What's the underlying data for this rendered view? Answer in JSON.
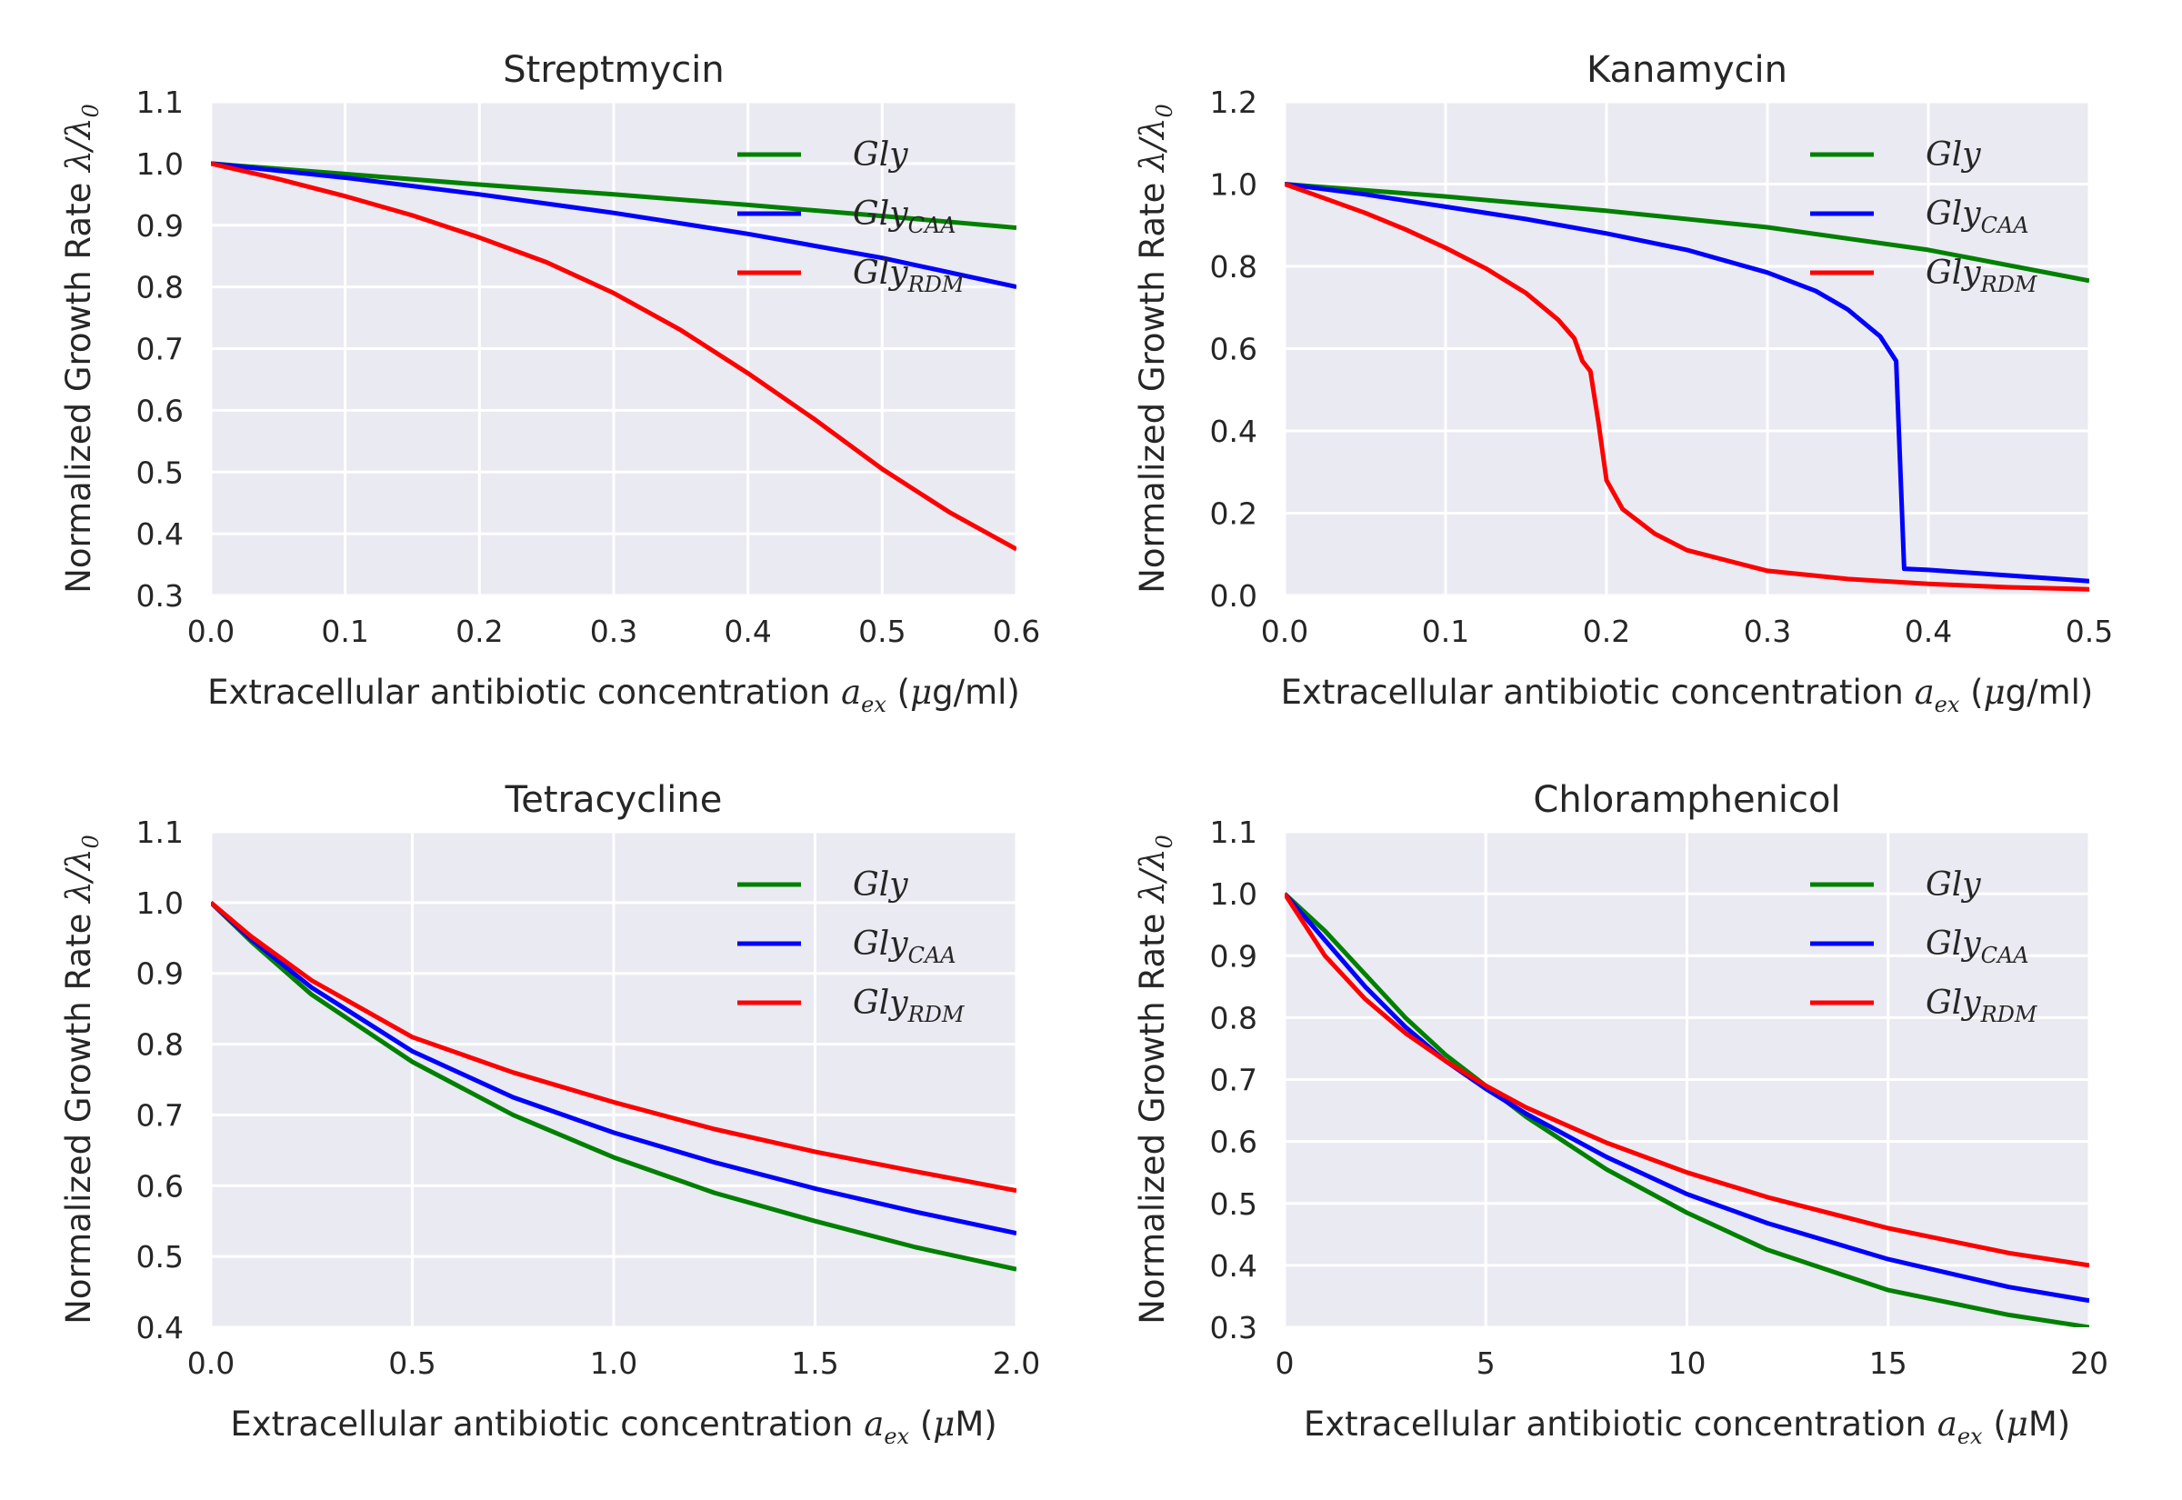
{
  "chart_data": [
    {
      "type": "line",
      "title": "Streptmycin",
      "xlabel": "Extracellular antibiotic concentration a_ex (μg/ml)",
      "xlabel_parts": {
        "text": "Extracellular antibiotic concentration ",
        "var": "a",
        "var_sub": "ex",
        "unit_pre": " (",
        "mu": "μ",
        "unit": "g/ml)"
      },
      "ylabel": "Normalized Growth Rate λ/λ0",
      "ylabel_parts": {
        "text": "Normalized Growth Rate ",
        "math": "λ/λ",
        "sub": "0"
      },
      "xlim": [
        0.0,
        0.6
      ],
      "ylim": [
        0.3,
        1.1
      ],
      "xticks": [
        0.0,
        0.1,
        0.2,
        0.3,
        0.4,
        0.5,
        0.6
      ],
      "xtick_labels": [
        "0.0",
        "0.1",
        "0.2",
        "0.3",
        "0.4",
        "0.5",
        "0.6"
      ],
      "yticks": [
        0.3,
        0.4,
        0.5,
        0.6,
        0.7,
        0.8,
        0.9,
        1.0,
        1.1
      ],
      "ytick_labels": [
        "0.3",
        "0.4",
        "0.5",
        "0.6",
        "0.7",
        "0.8",
        "0.9",
        "1.0",
        "1.1"
      ],
      "grid": true,
      "legend_position": "top-right",
      "series": [
        {
          "name": "Gly",
          "name_base": "Gly",
          "name_sub": "",
          "color": "#008000",
          "x": [
            0.0,
            0.1,
            0.2,
            0.3,
            0.4,
            0.5,
            0.6
          ],
          "y": [
            1.0,
            0.983,
            0.966,
            0.95,
            0.933,
            0.915,
            0.896
          ]
        },
        {
          "name": "Gly_CAA",
          "name_base": "Gly",
          "name_sub": "CAA",
          "color": "#0000ff",
          "x": [
            0.0,
            0.1,
            0.2,
            0.3,
            0.4,
            0.5,
            0.6
          ],
          "y": [
            1.0,
            0.977,
            0.95,
            0.92,
            0.886,
            0.847,
            0.8
          ]
        },
        {
          "name": "Gly_RDM",
          "name_base": "Gly",
          "name_sub": "RDM",
          "color": "#ff0000",
          "x": [
            0.0,
            0.05,
            0.1,
            0.15,
            0.2,
            0.25,
            0.3,
            0.35,
            0.4,
            0.45,
            0.5,
            0.55,
            0.6
          ],
          "y": [
            1.0,
            0.975,
            0.947,
            0.916,
            0.88,
            0.84,
            0.79,
            0.73,
            0.66,
            0.585,
            0.505,
            0.435,
            0.375
          ]
        }
      ]
    },
    {
      "type": "line",
      "title": "Kanamycin",
      "xlabel": "Extracellular antibiotic concentration a_ex (μg/ml)",
      "xlabel_parts": {
        "text": "Extracellular antibiotic concentration ",
        "var": "a",
        "var_sub": "ex",
        "unit_pre": " (",
        "mu": "μ",
        "unit": "g/ml)"
      },
      "ylabel": "Normalized Growth Rate λ/λ0",
      "ylabel_parts": {
        "text": "Normalized Growth Rate ",
        "math": "λ/λ",
        "sub": "0"
      },
      "xlim": [
        0.0,
        0.5
      ],
      "ylim": [
        0.0,
        1.2
      ],
      "xticks": [
        0.0,
        0.1,
        0.2,
        0.3,
        0.4,
        0.5
      ],
      "xtick_labels": [
        "0.0",
        "0.1",
        "0.2",
        "0.3",
        "0.4",
        "0.5"
      ],
      "yticks": [
        0.0,
        0.2,
        0.4,
        0.6,
        0.8,
        1.0,
        1.2
      ],
      "ytick_labels": [
        "0.0",
        "0.2",
        "0.4",
        "0.6",
        "0.8",
        "1.0",
        "1.2"
      ],
      "grid": true,
      "legend_position": "top-right",
      "series": [
        {
          "name": "Gly",
          "name_base": "Gly",
          "name_sub": "",
          "color": "#008000",
          "x": [
            0.0,
            0.1,
            0.2,
            0.3,
            0.4,
            0.5
          ],
          "y": [
            1.0,
            0.97,
            0.935,
            0.895,
            0.84,
            0.765
          ]
        },
        {
          "name": "Gly_CAA",
          "name_base": "Gly",
          "name_sub": "CAA",
          "color": "#0000ff",
          "x": [
            0.0,
            0.05,
            0.1,
            0.15,
            0.2,
            0.25,
            0.3,
            0.33,
            0.35,
            0.37,
            0.38,
            0.385,
            0.4,
            0.5
          ],
          "y": [
            1.0,
            0.975,
            0.945,
            0.915,
            0.88,
            0.84,
            0.785,
            0.74,
            0.695,
            0.63,
            0.57,
            0.065,
            0.062,
            0.035
          ]
        },
        {
          "name": "Gly_RDM",
          "name_base": "Gly",
          "name_sub": "RDM",
          "color": "#ff0000",
          "x": [
            0.0,
            0.025,
            0.05,
            0.075,
            0.1,
            0.125,
            0.15,
            0.17,
            0.18,
            0.185,
            0.19,
            0.195,
            0.2,
            0.21,
            0.23,
            0.25,
            0.3,
            0.35,
            0.4,
            0.45,
            0.5
          ],
          "y": [
            1.0,
            0.965,
            0.93,
            0.89,
            0.845,
            0.795,
            0.735,
            0.67,
            0.625,
            0.57,
            0.545,
            0.42,
            0.28,
            0.21,
            0.15,
            0.11,
            0.06,
            0.04,
            0.028,
            0.02,
            0.015
          ]
        }
      ]
    },
    {
      "type": "line",
      "title": "Tetracycline",
      "xlabel": "Extracellular antibiotic concentration a_ex (μM)",
      "xlabel_parts": {
        "text": "Extracellular antibiotic concentration ",
        "var": "a",
        "var_sub": "ex",
        "unit_pre": " (",
        "mu": "μ",
        "unit": "M)"
      },
      "ylabel": "Normalized Growth Rate λ/λ0",
      "ylabel_parts": {
        "text": "Normalized Growth Rate ",
        "math": "λ/λ",
        "sub": "0"
      },
      "xlim": [
        0.0,
        2.0
      ],
      "ylim": [
        0.4,
        1.1
      ],
      "xticks": [
        0.0,
        0.5,
        1.0,
        1.5,
        2.0
      ],
      "xtick_labels": [
        "0.0",
        "0.5",
        "1.0",
        "1.5",
        "2.0"
      ],
      "yticks": [
        0.4,
        0.5,
        0.6,
        0.7,
        0.8,
        0.9,
        1.0,
        1.1
      ],
      "ytick_labels": [
        "0.4",
        "0.5",
        "0.6",
        "0.7",
        "0.8",
        "0.9",
        "1.0",
        "1.1"
      ],
      "grid": true,
      "legend_position": "top-right",
      "series": [
        {
          "name": "Gly",
          "name_base": "Gly",
          "name_sub": "",
          "color": "#008000",
          "x": [
            0.0,
            0.1,
            0.25,
            0.5,
            0.75,
            1.0,
            1.25,
            1.5,
            1.75,
            2.0
          ],
          "y": [
            1.0,
            0.945,
            0.87,
            0.775,
            0.7,
            0.64,
            0.59,
            0.55,
            0.513,
            0.482
          ]
        },
        {
          "name": "Gly_CAA",
          "name_base": "Gly",
          "name_sub": "CAA",
          "color": "#0000ff",
          "x": [
            0.0,
            0.1,
            0.25,
            0.5,
            0.75,
            1.0,
            1.25,
            1.5,
            1.75,
            2.0
          ],
          "y": [
            1.0,
            0.948,
            0.88,
            0.79,
            0.725,
            0.675,
            0.633,
            0.596,
            0.563,
            0.533
          ]
        },
        {
          "name": "Gly_RDM",
          "name_base": "Gly",
          "name_sub": "RDM",
          "color": "#ff0000",
          "x": [
            0.0,
            0.1,
            0.25,
            0.5,
            0.75,
            1.0,
            1.25,
            1.5,
            1.75,
            2.0
          ],
          "y": [
            1.0,
            0.952,
            0.89,
            0.81,
            0.76,
            0.718,
            0.68,
            0.648,
            0.62,
            0.593
          ]
        }
      ]
    },
    {
      "type": "line",
      "title": "Chloramphenicol",
      "xlabel": "Extracellular antibiotic concentration a_ex (μM)",
      "xlabel_parts": {
        "text": "Extracellular antibiotic concentration ",
        "var": "a",
        "var_sub": "ex",
        "unit_pre": " (",
        "mu": "μ",
        "unit": "M)"
      },
      "ylabel": "Normalized Growth Rate λ/λ0",
      "ylabel_parts": {
        "text": "Normalized Growth Rate ",
        "math": "λ/λ",
        "sub": "0"
      },
      "xlim": [
        0,
        20
      ],
      "ylim": [
        0.3,
        1.1
      ],
      "xticks": [
        0,
        5,
        10,
        15,
        20
      ],
      "xtick_labels": [
        "0",
        "5",
        "10",
        "15",
        "20"
      ],
      "yticks": [
        0.3,
        0.4,
        0.5,
        0.6,
        0.7,
        0.8,
        0.9,
        1.0,
        1.1
      ],
      "ytick_labels": [
        "0.3",
        "0.4",
        "0.5",
        "0.6",
        "0.7",
        "0.8",
        "0.9",
        "1.0",
        "1.1"
      ],
      "grid": true,
      "legend_position": "top-right",
      "series": [
        {
          "name": "Gly",
          "name_base": "Gly",
          "name_sub": "",
          "color": "#008000",
          "x": [
            0,
            1,
            2,
            3,
            4,
            5,
            6,
            8,
            10,
            12,
            15,
            18,
            20
          ],
          "y": [
            1.0,
            0.94,
            0.87,
            0.8,
            0.74,
            0.69,
            0.64,
            0.555,
            0.485,
            0.425,
            0.36,
            0.32,
            0.3
          ]
        },
        {
          "name": "Gly_CAA",
          "name_base": "Gly",
          "name_sub": "CAA",
          "color": "#0000ff",
          "x": [
            0,
            1,
            2,
            3,
            4,
            5,
            6,
            8,
            10,
            12,
            15,
            18,
            20
          ],
          "y": [
            1.0,
            0.925,
            0.85,
            0.785,
            0.73,
            0.685,
            0.645,
            0.575,
            0.515,
            0.468,
            0.41,
            0.365,
            0.343
          ]
        },
        {
          "name": "Gly_RDM",
          "name_base": "Gly",
          "name_sub": "RDM",
          "color": "#ff0000",
          "x": [
            0,
            1,
            2,
            3,
            4,
            5,
            6,
            8,
            10,
            12,
            15,
            18,
            20
          ],
          "y": [
            1.0,
            0.9,
            0.83,
            0.775,
            0.73,
            0.69,
            0.655,
            0.598,
            0.55,
            0.51,
            0.46,
            0.42,
            0.4
          ]
        }
      ]
    }
  ]
}
